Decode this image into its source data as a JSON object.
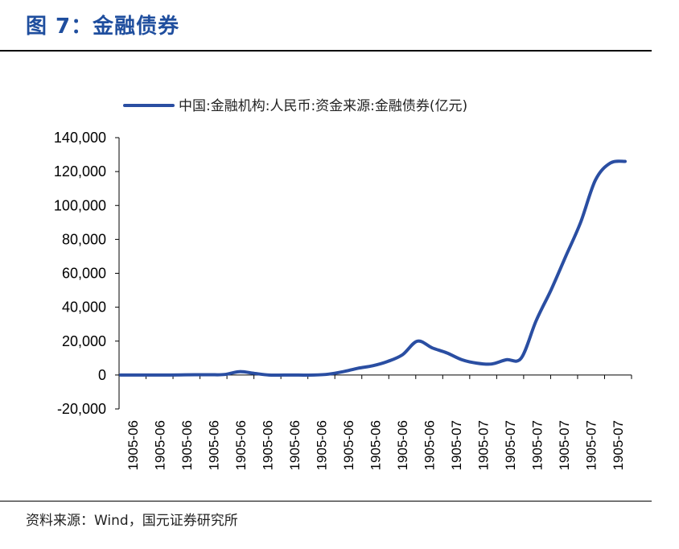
{
  "header": {
    "title": "图 7：金融债券"
  },
  "footer": {
    "source": "资料来源：Wind，国元证券研究所"
  },
  "colors": {
    "line": "#2a4ea2",
    "title": "#1f4e9e"
  },
  "chart_data": {
    "type": "line",
    "title": "",
    "xlabel": "",
    "ylabel": "",
    "ylim": [
      -20000,
      140000
    ],
    "yticks": [
      -20000,
      0,
      20000,
      40000,
      60000,
      80000,
      100000,
      120000,
      140000
    ],
    "ytick_labels": [
      "-20,000",
      "0",
      "20,000",
      "40,000",
      "60,000",
      "80,000",
      "100,000",
      "120,000",
      "140,000"
    ],
    "xtick_labels": [
      "1905-06",
      "1905-06",
      "1905-06",
      "1905-06",
      "1905-06",
      "1905-06",
      "1905-06",
      "1905-06",
      "1905-06",
      "1905-06",
      "1905-06",
      "1905-06",
      "1905-07",
      "1905-07",
      "1905-07",
      "1905-07",
      "1905-07",
      "1905-07",
      "1905-07"
    ],
    "legend": {
      "position": "top",
      "entries": [
        "中国:金融机构:人民币:资金来源:金融债券(亿元)"
      ]
    },
    "grid": false,
    "series": [
      {
        "name": "中国:金融机构:人民币:资金来源:金融债券(亿元)",
        "values": [
          0,
          0,
          0,
          0,
          100,
          200,
          200,
          300,
          2000,
          1000,
          0,
          0,
          0,
          0,
          500,
          2000,
          4000,
          5500,
          8000,
          12000,
          20000,
          16000,
          13000,
          9000,
          7000,
          6500,
          9000,
          10000,
          32000,
          50000,
          70000,
          90000,
          115000,
          125000,
          126000
        ]
      }
    ]
  }
}
